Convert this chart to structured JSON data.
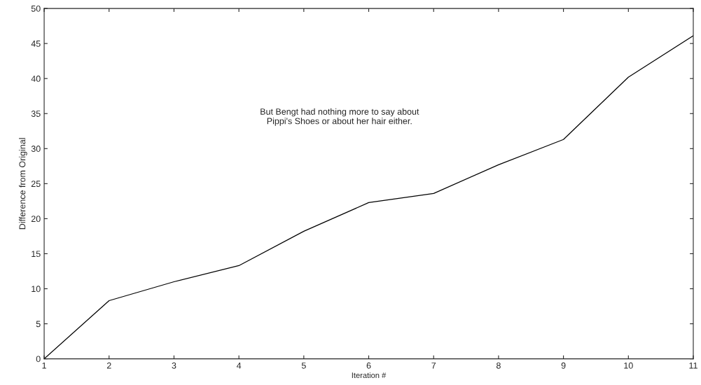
{
  "chart_data": {
    "type": "line",
    "xlabel": "Iteration #",
    "ylabel": "Difference from Original",
    "annotations": [
      "But Bengt had nothing more to say about\nPippi's Shoes or about her hair either."
    ],
    "x": [
      1,
      2,
      3,
      4,
      5,
      6,
      7,
      8,
      9,
      10,
      11
    ],
    "series": [
      {
        "color": "#000000",
        "values": [
          0,
          8.3,
          11,
          13.3,
          18.2,
          22.3,
          23.6,
          27.7,
          31.3,
          40.2,
          46.1
        ]
      }
    ],
    "xlim": [
      1,
      11
    ],
    "xticks": [
      1,
      2,
      3,
      4,
      5,
      6,
      7,
      8,
      9,
      10,
      11
    ],
    "ylim": [
      0,
      50
    ],
    "yticks": [
      0,
      5,
      10,
      15,
      20,
      25,
      30,
      35,
      40,
      45,
      50
    ],
    "grid": false,
    "legend": false,
    "marker": "none",
    "line_style": "solid"
  }
}
